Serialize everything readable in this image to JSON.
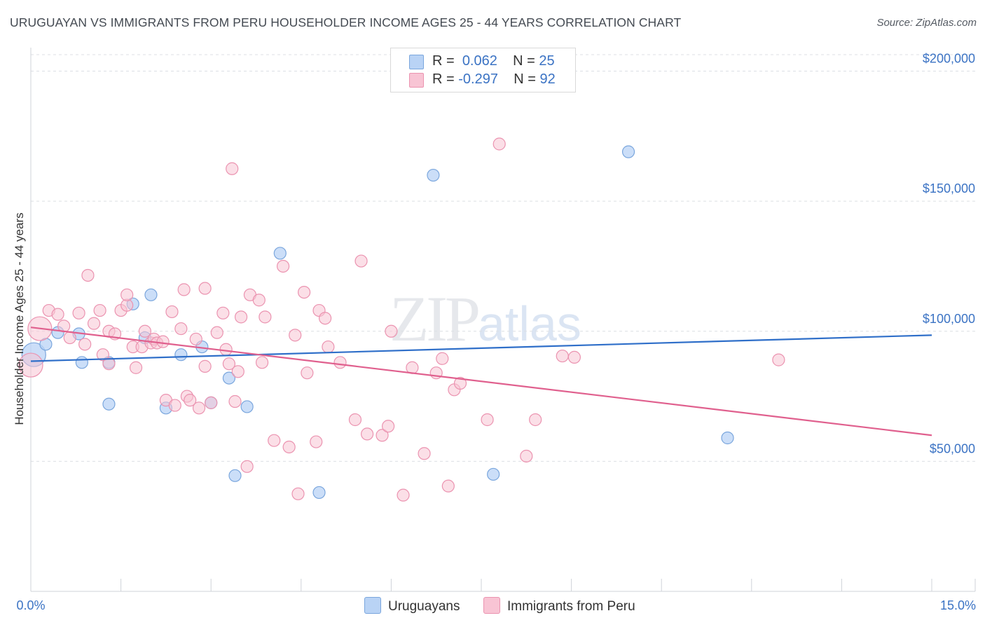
{
  "title": "URUGUAYAN VS IMMIGRANTS FROM PERU HOUSEHOLDER INCOME AGES 25 - 44 YEARS CORRELATION CHART",
  "source": "Source: ZipAtlas.com",
  "watermark": {
    "zip": "ZIP",
    "atlas": "atlas"
  },
  "legend_top": [
    {
      "r_label": "R =",
      "r_value": "0.062",
      "n_label": "N =",
      "n_value": "25"
    },
    {
      "r_label": "R =",
      "r_value": "-0.297",
      "n_label": "N =",
      "n_value": "92"
    }
  ],
  "legend_bottom": [
    "Uruguayans",
    "Immigrants from Peru"
  ],
  "colors": {
    "blue_fill": "#b9d3f5",
    "blue_stroke": "#7aa6dd",
    "blue_line": "#2f6fc9",
    "pink_fill": "#f8c4d4",
    "pink_stroke": "#eb93b0",
    "pink_line": "#e0608e",
    "tick_label": "#3b73c4",
    "grid": "#dcdfe4"
  },
  "chart_data": {
    "type": "scatter",
    "title": "URUGUAYAN VS IMMIGRANTS FROM PERU HOUSEHOLDER INCOME AGES 25 - 44 YEARS CORRELATION CHART",
    "xlabel": "",
    "ylabel": "Householder Income Ages 25 - 44 years",
    "xlim": [
      0,
      15
    ],
    "ylim": [
      0,
      205000
    ],
    "x_tick_labels": [
      {
        "value": 0,
        "label": "0.0%"
      },
      {
        "value": 15,
        "label": "15.0%"
      }
    ],
    "y_ticks": [
      {
        "value": 50000,
        "label": "$50,000"
      },
      {
        "value": 100000,
        "label": "$100,000"
      },
      {
        "value": 150000,
        "label": "$150,000"
      },
      {
        "value": 200000,
        "label": "$200,000"
      }
    ],
    "grid": true,
    "legend_position": "top-center",
    "series": [
      {
        "name": "Uruguayans",
        "R": 0.062,
        "N": 25,
        "trend": {
          "x": [
            0,
            15
          ],
          "y": [
            88500,
            98500
          ]
        },
        "points": [
          {
            "x": 0.05,
            "y": 91000,
            "large": true
          },
          {
            "x": 0.25,
            "y": 95000
          },
          {
            "x": 0.45,
            "y": 99500
          },
          {
            "x": 0.8,
            "y": 99000
          },
          {
            "x": 0.85,
            "y": 88000
          },
          {
            "x": 1.3,
            "y": 88000
          },
          {
            "x": 1.3,
            "y": 72000
          },
          {
            "x": 1.7,
            "y": 110500
          },
          {
            "x": 2.0,
            "y": 114000
          },
          {
            "x": 1.9,
            "y": 97500
          },
          {
            "x": 2.25,
            "y": 70500
          },
          {
            "x": 2.5,
            "y": 91000
          },
          {
            "x": 2.85,
            "y": 94000
          },
          {
            "x": 3.0,
            "y": 72500
          },
          {
            "x": 3.3,
            "y": 82000
          },
          {
            "x": 3.4,
            "y": 44500
          },
          {
            "x": 3.6,
            "y": 71000
          },
          {
            "x": 4.15,
            "y": 130000
          },
          {
            "x": 4.8,
            "y": 38000
          },
          {
            "x": 6.7,
            "y": 160000
          },
          {
            "x": 7.7,
            "y": 45000
          },
          {
            "x": 9.95,
            "y": 169000
          },
          {
            "x": 11.6,
            "y": 59000
          }
        ]
      },
      {
        "name": "Immigrants from Peru",
        "R": -0.297,
        "N": 92,
        "trend": {
          "x": [
            0,
            15
          ],
          "y": [
            101500,
            60000
          ]
        },
        "points": [
          {
            "x": 0.0,
            "y": 87000,
            "large": true
          },
          {
            "x": 0.15,
            "y": 101000,
            "large": true
          },
          {
            "x": 0.3,
            "y": 108000
          },
          {
            "x": 0.45,
            "y": 106500
          },
          {
            "x": 0.55,
            "y": 102000
          },
          {
            "x": 0.65,
            "y": 97500
          },
          {
            "x": 0.8,
            "y": 107000
          },
          {
            "x": 0.9,
            "y": 95000
          },
          {
            "x": 0.95,
            "y": 121500
          },
          {
            "x": 1.05,
            "y": 103000
          },
          {
            "x": 1.15,
            "y": 108000
          },
          {
            "x": 1.2,
            "y": 91000
          },
          {
            "x": 1.3,
            "y": 87500
          },
          {
            "x": 1.3,
            "y": 100000
          },
          {
            "x": 1.4,
            "y": 99000
          },
          {
            "x": 1.5,
            "y": 108000
          },
          {
            "x": 1.6,
            "y": 110000
          },
          {
            "x": 1.6,
            "y": 114000
          },
          {
            "x": 1.7,
            "y": 94000
          },
          {
            "x": 1.75,
            "y": 86000
          },
          {
            "x": 1.85,
            "y": 94000
          },
          {
            "x": 1.9,
            "y": 100000
          },
          {
            "x": 2.0,
            "y": 95500
          },
          {
            "x": 2.05,
            "y": 97000
          },
          {
            "x": 2.1,
            "y": 95500
          },
          {
            "x": 2.2,
            "y": 96000
          },
          {
            "x": 2.25,
            "y": 73500
          },
          {
            "x": 2.35,
            "y": 107500
          },
          {
            "x": 2.4,
            "y": 71500
          },
          {
            "x": 2.5,
            "y": 101000
          },
          {
            "x": 2.55,
            "y": 116000
          },
          {
            "x": 2.6,
            "y": 75000
          },
          {
            "x": 2.65,
            "y": 73500
          },
          {
            "x": 2.75,
            "y": 97000
          },
          {
            "x": 2.8,
            "y": 70500
          },
          {
            "x": 2.9,
            "y": 86500
          },
          {
            "x": 2.9,
            "y": 116500
          },
          {
            "x": 3.0,
            "y": 72500
          },
          {
            "x": 3.1,
            "y": 99500
          },
          {
            "x": 3.2,
            "y": 107000
          },
          {
            "x": 3.25,
            "y": 93000
          },
          {
            "x": 3.3,
            "y": 87500
          },
          {
            "x": 3.35,
            "y": 162500
          },
          {
            "x": 3.4,
            "y": 73000
          },
          {
            "x": 3.45,
            "y": 84500
          },
          {
            "x": 3.5,
            "y": 105500
          },
          {
            "x": 3.6,
            "y": 48000
          },
          {
            "x": 3.65,
            "y": 114000
          },
          {
            "x": 3.8,
            "y": 112000
          },
          {
            "x": 3.85,
            "y": 88000
          },
          {
            "x": 3.9,
            "y": 105500
          },
          {
            "x": 4.05,
            "y": 58000
          },
          {
            "x": 4.2,
            "y": 125000
          },
          {
            "x": 4.3,
            "y": 55500
          },
          {
            "x": 4.4,
            "y": 98500
          },
          {
            "x": 4.45,
            "y": 37500
          },
          {
            "x": 4.55,
            "y": 115000
          },
          {
            "x": 4.6,
            "y": 84000
          },
          {
            "x": 4.75,
            "y": 57500
          },
          {
            "x": 4.8,
            "y": 108000
          },
          {
            "x": 4.9,
            "y": 105000
          },
          {
            "x": 4.95,
            "y": 94000
          },
          {
            "x": 5.15,
            "y": 88000
          },
          {
            "x": 5.4,
            "y": 66000
          },
          {
            "x": 5.5,
            "y": 127000
          },
          {
            "x": 5.6,
            "y": 60500
          },
          {
            "x": 5.85,
            "y": 60000
          },
          {
            "x": 5.95,
            "y": 63500
          },
          {
            "x": 6.0,
            "y": 100000
          },
          {
            "x": 6.2,
            "y": 37000
          },
          {
            "x": 6.35,
            "y": 86000
          },
          {
            "x": 6.55,
            "y": 53000
          },
          {
            "x": 6.75,
            "y": 84000
          },
          {
            "x": 6.85,
            "y": 89500
          },
          {
            "x": 6.95,
            "y": 40500
          },
          {
            "x": 7.05,
            "y": 77500
          },
          {
            "x": 7.15,
            "y": 80000
          },
          {
            "x": 7.6,
            "y": 66000
          },
          {
            "x": 7.8,
            "y": 172000
          },
          {
            "x": 8.25,
            "y": 52000
          },
          {
            "x": 8.4,
            "y": 66000
          },
          {
            "x": 8.85,
            "y": 90500
          },
          {
            "x": 9.05,
            "y": 90000
          },
          {
            "x": 12.45,
            "y": 89000
          }
        ]
      }
    ]
  }
}
